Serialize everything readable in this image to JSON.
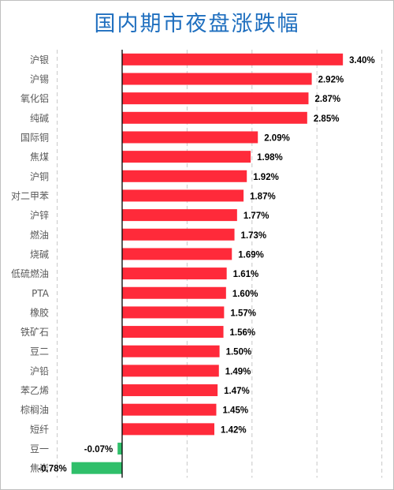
{
  "chart_data": {
    "type": "bar",
    "orientation": "horizontal",
    "title": "国内期市夜盘涨跌幅",
    "categories": [
      "沪银",
      "沪锡",
      "氧化铝",
      "纯碱",
      "国际铜",
      "焦煤",
      "沪铜",
      "对二甲苯",
      "沪锌",
      "燃油",
      "烧碱",
      "低硫燃油",
      "PTA",
      "橡胶",
      "铁矿石",
      "豆二",
      "沪铅",
      "苯乙烯",
      "棕榈油",
      "短纤",
      "豆一",
      "焦炭"
    ],
    "values": [
      3.4,
      2.92,
      2.87,
      2.85,
      2.09,
      1.98,
      1.92,
      1.87,
      1.77,
      1.73,
      1.69,
      1.61,
      1.6,
      1.57,
      1.56,
      1.5,
      1.49,
      1.47,
      1.45,
      1.42,
      -0.07,
      -0.78
    ],
    "value_labels": [
      "3.40%",
      "2.92%",
      "2.87%",
      "2.85%",
      "2.09%",
      "1.98%",
      "1.92%",
      "1.87%",
      "1.77%",
      "1.73%",
      "1.69%",
      "1.61%",
      "1.60%",
      "1.57%",
      "1.56%",
      "1.50%",
      "1.49%",
      "1.47%",
      "1.45%",
      "1.42%",
      "-0.07%",
      "-0.78%"
    ],
    "xlim": [
      -1.0,
      4.0
    ],
    "grid": "vertical-dashed",
    "colors": {
      "positive": "#ff2a3a",
      "negative": "#2fbf6a",
      "title": "#1f6fbf",
      "axis": "#000000",
      "grid": "#c8c8c8"
    }
  }
}
